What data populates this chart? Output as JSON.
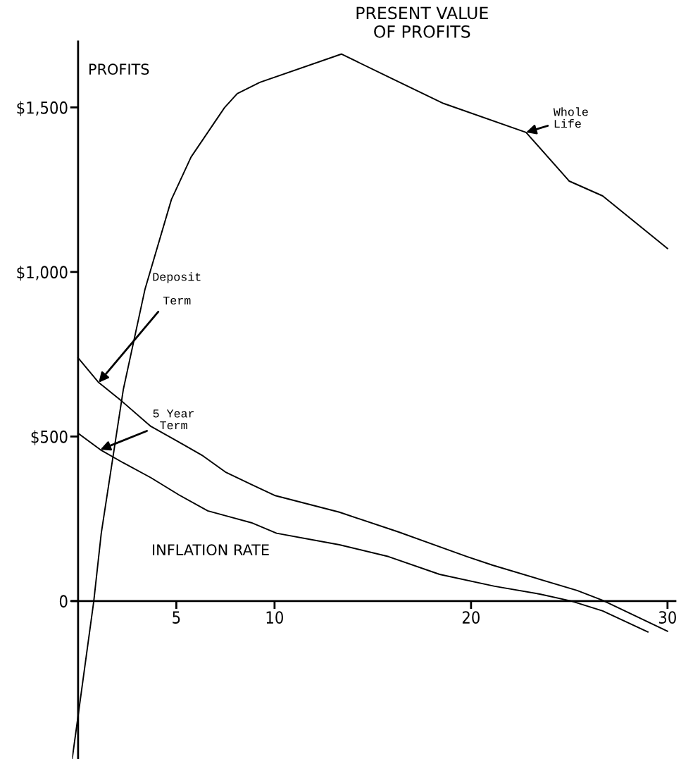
{
  "chart_data": {
    "type": "line",
    "title": "PRESENT VALUE\nOF PROFITS",
    "xlabel": "INFLATION RATE",
    "ylabel": "PROFITS",
    "series": [
      {
        "name": "Whole\nLife",
        "color": "#000000",
        "x": [
          -0.3,
          0.8,
          1.18,
          2.3,
          3.4,
          4.75,
          5.75,
          7.45,
          8.1,
          9.25,
          13.4,
          16.0,
          18.6,
          22.8,
          25.0,
          26.7,
          30.0
        ],
        "values": [
          -480,
          0,
          206,
          642,
          946,
          1220,
          1349,
          1499,
          1542,
          1576,
          1662,
          1587,
          1512,
          1424,
          1276,
          1231,
          1071
        ]
      },
      {
        "name": "Deposit\n\nTerm",
        "color": "#000000",
        "x": [
          0,
          1.05,
          2.25,
          3.7,
          5.28,
          6.36,
          7.5,
          8.87,
          10,
          13.3,
          16.3,
          19.8,
          21.1,
          25.4,
          26.7,
          30.0
        ],
        "values": [
          739,
          664,
          606,
          531,
          478,
          441,
          392,
          353,
          321,
          270,
          210,
          135,
          109,
          32,
          2,
          -92
        ]
      },
      {
        "name": "5 Year\nTerm",
        "color": "#000000",
        "x": [
          0,
          1.13,
          2.3,
          3.7,
          5.12,
          6.6,
          7.65,
          8.82,
          10.1,
          13.3,
          15.8,
          18.4,
          21.2,
          23.5,
          25.1,
          26.7,
          29.0
        ],
        "values": [
          510,
          460,
          420,
          375,
          323,
          274,
          257,
          238,
          206,
          171,
          135,
          81,
          45,
          21,
          0,
          -30,
          -94
        ]
      }
    ],
    "xlim": [
      -0.3,
      30.4
    ],
    "xticks": [
      5,
      10,
      20,
      30
    ],
    "ylim": [
      -480,
      1700
    ],
    "yticks": [
      0,
      {
        "value": 500,
        "label": "$500"
      },
      {
        "value": 1000,
        "label": "$1,000"
      },
      {
        "value": 1500,
        "label": "$1,500"
      }
    ],
    "grid": false,
    "legend": false,
    "marker": "none",
    "line_style": "solid"
  }
}
